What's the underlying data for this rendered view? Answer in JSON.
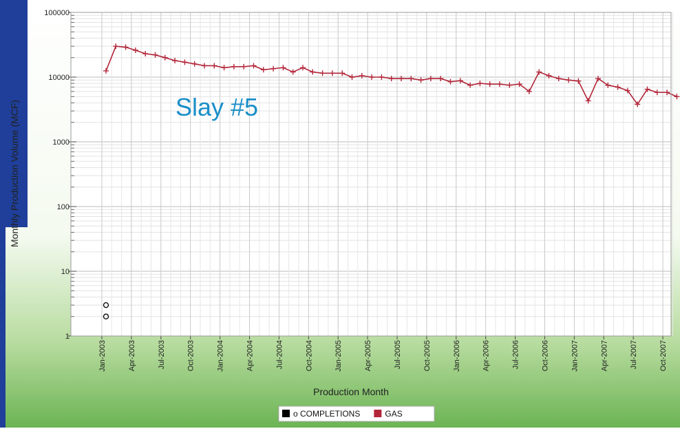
{
  "chart_data": {
    "type": "line",
    "annotation": "Slay #5",
    "x_label": "Production Month",
    "y_label": "Monthly Production Volume (MCF)",
    "log_scale": true,
    "grid": true,
    "legend": "bottom",
    "ylim": [
      1,
      100000
    ],
    "yticks": [
      1,
      10,
      100,
      1000,
      10000,
      100000
    ],
    "categories": [
      "Jan-2003",
      null,
      null,
      "Apr-2003",
      null,
      null,
      "Jul-2003",
      null,
      null,
      "Oct-2003",
      null,
      null,
      "Jan-2004",
      null,
      null,
      "Apr-2004",
      null,
      null,
      "Jul-2004",
      null,
      null,
      "Oct-2004",
      null,
      null,
      "Jan-2005",
      null,
      null,
      "Apr-2005",
      null,
      null,
      "Jul-2005",
      null,
      null,
      "Oct-2005",
      null,
      null,
      "Jan-2006",
      null,
      null,
      "Apr-2006",
      null,
      null,
      "Jul-2006",
      null,
      null,
      "Oct-2006",
      null,
      null,
      "Jan-2007",
      null,
      null,
      "Apr-2007",
      null,
      null,
      "Jul-2007",
      null,
      null,
      "Oct-2007",
      null
    ],
    "series": [
      {
        "name": "GAS",
        "color": "#b3263a",
        "values": [
          12500,
          30000,
          29000,
          26000,
          23000,
          22000,
          20000,
          18000,
          17000,
          16000,
          15000,
          15000,
          14000,
          14500,
          14500,
          15000,
          13000,
          13500,
          14000,
          12000,
          14000,
          12000,
          11500,
          11500,
          11500,
          10000,
          10500,
          10000,
          10000,
          9500,
          9500,
          9500,
          9000,
          9500,
          9500,
          8500,
          8800,
          7500,
          8000,
          7800,
          7800,
          7500,
          7800,
          6000,
          12000,
          10500,
          9500,
          9000,
          8700,
          4300,
          9500,
          7500,
          7000,
          6200,
          3800,
          6500,
          5800,
          5800,
          5000
        ]
      },
      {
        "name": "o COMPLETIONS",
        "color": "#000000",
        "x": [
          "Jan-2003",
          "Jan-2003"
        ],
        "values": [
          3,
          2
        ]
      }
    ]
  }
}
